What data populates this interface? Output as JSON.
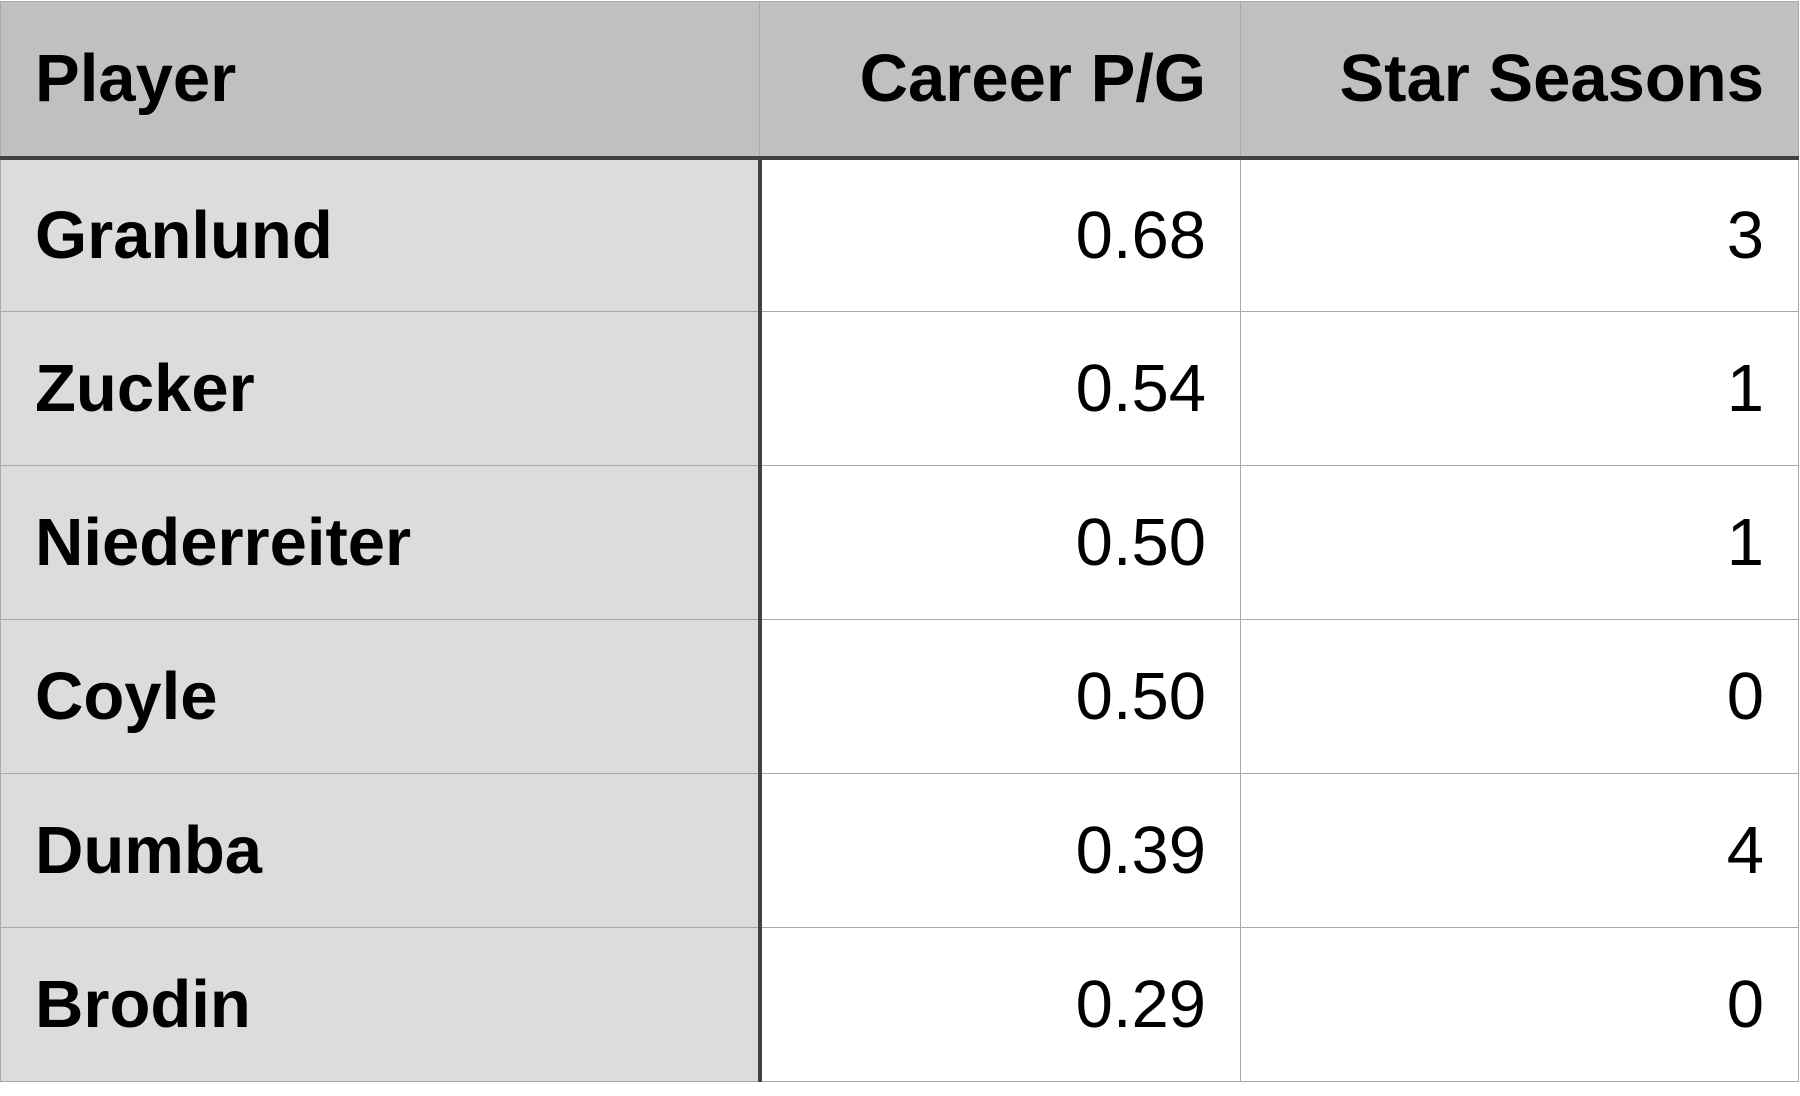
{
  "table": {
    "headers": [
      "Player",
      "Career P/G",
      "Star Seasons"
    ],
    "rows": [
      [
        "Granlund",
        "0.68",
        "3"
      ],
      [
        "Zucker",
        "0.54",
        "1"
      ],
      [
        "Niederreiter",
        "0.50",
        "1"
      ],
      [
        "Coyle",
        "0.50",
        "0"
      ],
      [
        "Dumba",
        "0.39",
        "4"
      ],
      [
        "Brodin",
        "0.29",
        "0"
      ]
    ]
  },
  "colors": {
    "header_bg": "#bfc1bf",
    "name_col_bg": "#dcdcdc",
    "cell_bg": "#ffffff",
    "border": "#a8aaa8",
    "divider": "#414141"
  }
}
